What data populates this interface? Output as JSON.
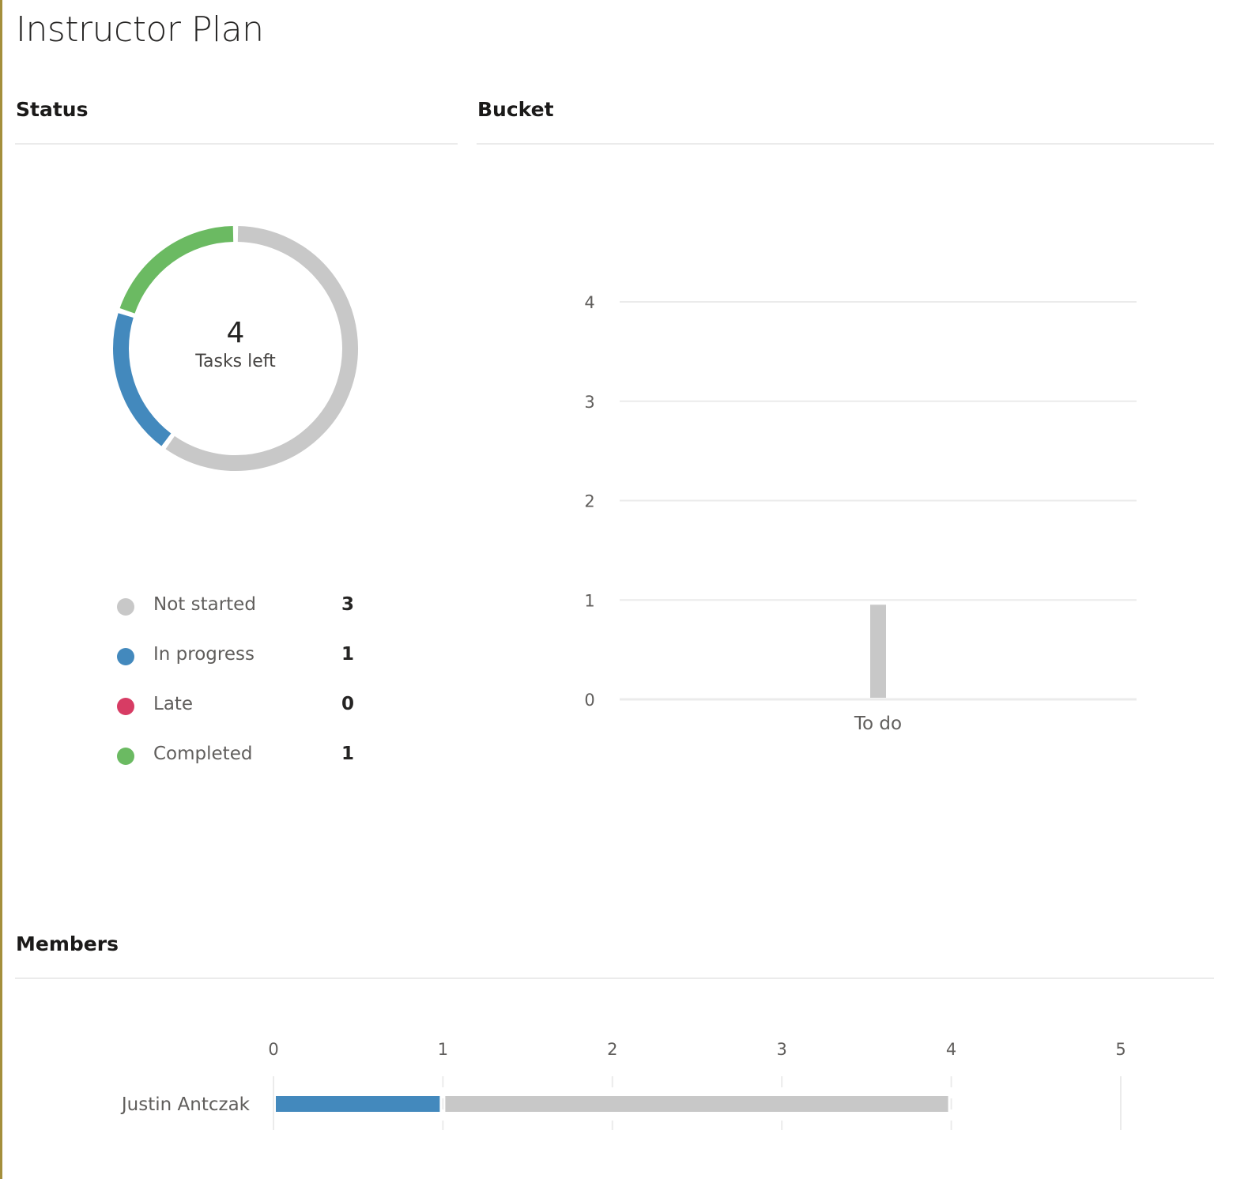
{
  "page": {
    "title": "Instructor Plan"
  },
  "sections": {
    "status": "Status",
    "bucket": "Bucket",
    "members": "Members"
  },
  "colors": {
    "not_started": "#c8c8c8",
    "in_progress": "#4389bd",
    "late": "#d73c64",
    "completed": "#6bba62",
    "gridline": "#ebebeb",
    "accent_rule": "#a48f3c"
  },
  "status": {
    "tasks_left_count": "4",
    "tasks_left_label": "Tasks left",
    "legend": [
      {
        "label": "Not started",
        "value": "3",
        "color": "#c8c8c8"
      },
      {
        "label": "In progress",
        "value": "1",
        "color": "#4389bd"
      },
      {
        "label": "Late",
        "value": "0",
        "color": "#d73c64"
      },
      {
        "label": "Completed",
        "value": "1",
        "color": "#6bba62"
      }
    ]
  },
  "chart_data": [
    {
      "id": "status",
      "type": "pie",
      "title": "Status",
      "slices": [
        {
          "label": "Not started",
          "value": 3,
          "color": "#c8c8c8"
        },
        {
          "label": "In progress",
          "value": 1,
          "color": "#4389bd"
        },
        {
          "label": "Late",
          "value": 0,
          "color": "#d73c64"
        },
        {
          "label": "Completed",
          "value": 1,
          "color": "#6bba62"
        }
      ],
      "center_value": "4",
      "center_label": "Tasks left",
      "legend_placement": "bottom"
    },
    {
      "id": "bucket",
      "type": "bar",
      "title": "Bucket",
      "categories": [
        "To do"
      ],
      "series": [
        {
          "name": "Not started",
          "values": [
            1
          ],
          "color": "#c8c8c8"
        }
      ],
      "ylim": [
        0,
        4
      ],
      "yticks": [
        "0",
        "1",
        "2",
        "3",
        "4"
      ],
      "grid": true
    },
    {
      "id": "members",
      "type": "bar",
      "orientation": "horizontal",
      "stacked": true,
      "title": "Members",
      "categories": [
        "Justin Antczak"
      ],
      "series": [
        {
          "name": "In progress",
          "values": [
            1
          ],
          "color": "#4389bd"
        },
        {
          "name": "Not started",
          "values": [
            3
          ],
          "color": "#c8c8c8"
        }
      ],
      "xlim": [
        0,
        5
      ],
      "xticks": [
        "0",
        "1",
        "2",
        "3",
        "4",
        "5"
      ],
      "grid": true
    }
  ]
}
